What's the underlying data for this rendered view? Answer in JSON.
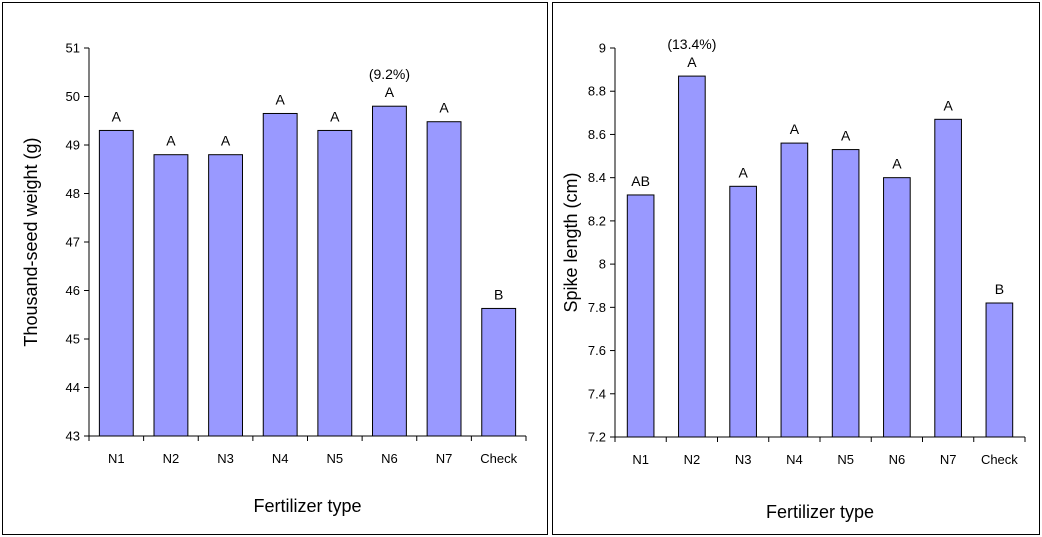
{
  "charts": [
    {
      "type": "bar",
      "categories": [
        "N1",
        "N2",
        "N3",
        "N4",
        "N5",
        "N6",
        "N7",
        "Check"
      ],
      "values": [
        49.3,
        48.8,
        48.8,
        49.65,
        49.3,
        49.8,
        49.48,
        45.63
      ],
      "letters": [
        "A",
        "A",
        "A",
        "A",
        "A",
        "A",
        "A",
        "B"
      ],
      "annotations": [
        {
          "index": 5,
          "text": "(9.2%)"
        }
      ],
      "xlabel": "Fertilizer type",
      "ylabel": "Thousand-seed weight (g)",
      "ylim": [
        43,
        51
      ],
      "yticks": [
        43,
        44,
        45,
        46,
        47,
        48,
        49,
        50,
        51
      ],
      "ytick_labels": [
        "43",
        "44",
        "45",
        "46",
        "47",
        "48",
        "49",
        "50",
        "51"
      ],
      "bar_color": "#9999ff",
      "grid": false,
      "legend": "none"
    },
    {
      "type": "bar",
      "categories": [
        "N1",
        "N2",
        "N3",
        "N4",
        "N5",
        "N6",
        "N7",
        "Check"
      ],
      "values": [
        8.32,
        8.87,
        8.36,
        8.56,
        8.53,
        8.4,
        8.67,
        7.82
      ],
      "letters": [
        "AB",
        "A",
        "A",
        "A",
        "A",
        "A",
        "A",
        "B"
      ],
      "annotations": [
        {
          "index": 1,
          "text": "(13.4%)"
        }
      ],
      "xlabel": "Fertilizer type",
      "ylabel": "Spike length (cm)",
      "ylim": [
        7.2,
        9
      ],
      "yticks": [
        7.2,
        7.4,
        7.6,
        7.8,
        8,
        8.2,
        8.4,
        8.6,
        8.8,
        9
      ],
      "ytick_labels": [
        "7.2",
        "7.4",
        "7.6",
        "7.8",
        "8",
        "8.2",
        "8.4",
        "8.6",
        "8.8",
        "9"
      ],
      "bar_color": "#9999ff",
      "grid": false,
      "legend": "none"
    }
  ]
}
